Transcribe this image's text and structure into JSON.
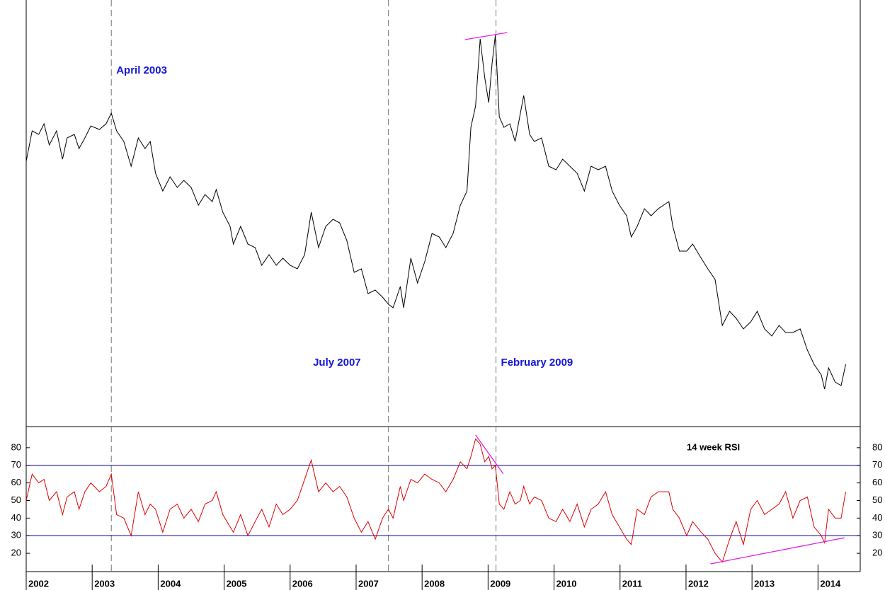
{
  "chart_data": [
    {
      "type": "line",
      "x": [
        2002.0,
        2002.09,
        2002.19,
        2002.27,
        2002.35,
        2002.46,
        2002.55,
        2002.62,
        2002.73,
        2002.8,
        2002.89,
        2002.98,
        2003.11,
        2003.21,
        2003.29,
        2003.37,
        2003.48,
        2003.59,
        2003.7,
        2003.8,
        2003.88,
        2003.96,
        2004.07,
        2004.18,
        2004.29,
        2004.39,
        2004.5,
        2004.61,
        2004.71,
        2004.82,
        2004.88,
        2004.98,
        2005.09,
        2005.14,
        2005.25,
        2005.36,
        2005.47,
        2005.57,
        2005.68,
        2005.79,
        2005.89,
        2006.0,
        2006.11,
        2006.22,
        2006.32,
        2006.43,
        2006.54,
        2006.65,
        2006.75,
        2006.86,
        2006.97,
        2007.08,
        2007.18,
        2007.29,
        2007.4,
        2007.49,
        2007.56,
        2007.67,
        2007.72,
        2007.83,
        2007.93,
        2008.04,
        2008.15,
        2008.26,
        2008.36,
        2008.47,
        2008.58,
        2008.68,
        2008.74,
        2008.81,
        2008.88,
        2008.95,
        2009.01,
        2009.06,
        2009.11,
        2009.17,
        2009.24,
        2009.33,
        2009.41,
        2009.49,
        2009.54,
        2009.63,
        2009.7,
        2009.81,
        2009.92,
        2010.03,
        2010.13,
        2010.24,
        2010.35,
        2010.46,
        2010.56,
        2010.67,
        2010.78,
        2010.88,
        2010.99,
        2011.1,
        2011.17,
        2011.26,
        2011.37,
        2011.47,
        2011.58,
        2011.74,
        2011.8,
        2011.9,
        2012.01,
        2012.1,
        2012.23,
        2012.33,
        2012.44,
        2012.55,
        2012.66,
        2012.76,
        2012.87,
        2012.98,
        2013.08,
        2013.19,
        2013.3,
        2013.41,
        2013.51,
        2013.62,
        2013.73,
        2013.84,
        2013.94,
        2014.05,
        2014.1,
        2014.16,
        2014.26,
        2014.35,
        2014.42
      ],
      "values": [
        375,
        418,
        413,
        428,
        398,
        418,
        378,
        408,
        413,
        393,
        408,
        425,
        420,
        428,
        443,
        418,
        403,
        368,
        408,
        393,
        403,
        358,
        333,
        353,
        338,
        348,
        338,
        313,
        328,
        318,
        335,
        303,
        283,
        258,
        283,
        258,
        253,
        228,
        243,
        228,
        238,
        228,
        223,
        243,
        303,
        253,
        283,
        293,
        288,
        263,
        218,
        223,
        188,
        193,
        183,
        173,
        168,
        198,
        168,
        238,
        203,
        233,
        273,
        268,
        253,
        273,
        313,
        333,
        423,
        453,
        548,
        493,
        458,
        513,
        553,
        438,
        423,
        428,
        403,
        443,
        468,
        413,
        403,
        408,
        368,
        363,
        378,
        368,
        358,
        333,
        368,
        363,
        368,
        333,
        313,
        298,
        268,
        283,
        308,
        298,
        308,
        318,
        283,
        248,
        248,
        258,
        238,
        223,
        208,
        143,
        163,
        153,
        138,
        148,
        163,
        138,
        128,
        143,
        133,
        133,
        138,
        108,
        88,
        73,
        53,
        83,
        63,
        58,
        88
      ],
      "color": "#000000",
      "xlim": [
        2002,
        2014.64
      ],
      "ylim": [
        0,
        603
      ],
      "vlines": [
        2003.29,
        2007.49,
        2009.12
      ],
      "annotations": [
        "April 2003",
        "July 2007",
        "February 2009"
      ],
      "trendlines": [
        {
          "x": [
            2008.65,
            2009.29
          ],
          "values": [
            547,
            557
          ],
          "color": "#e020e0"
        }
      ]
    },
    {
      "type": "line",
      "label": "14 week RSI",
      "x": [
        2002.0,
        2002.09,
        2002.19,
        2002.27,
        2002.35,
        2002.46,
        2002.55,
        2002.62,
        2002.73,
        2002.8,
        2002.89,
        2002.98,
        2003.11,
        2003.21,
        2003.29,
        2003.37,
        2003.48,
        2003.59,
        2003.7,
        2003.8,
        2003.88,
        2003.96,
        2004.07,
        2004.18,
        2004.29,
        2004.39,
        2004.5,
        2004.61,
        2004.71,
        2004.82,
        2004.88,
        2004.98,
        2005.09,
        2005.14,
        2005.25,
        2005.36,
        2005.47,
        2005.57,
        2005.68,
        2005.79,
        2005.89,
        2006.0,
        2006.11,
        2006.22,
        2006.32,
        2006.43,
        2006.54,
        2006.65,
        2006.75,
        2006.86,
        2006.97,
        2007.08,
        2007.18,
        2007.29,
        2007.4,
        2007.49,
        2007.56,
        2007.67,
        2007.72,
        2007.83,
        2007.93,
        2008.04,
        2008.15,
        2008.26,
        2008.36,
        2008.47,
        2008.58,
        2008.68,
        2008.74,
        2008.81,
        2008.88,
        2008.95,
        2009.01,
        2009.06,
        2009.11,
        2009.17,
        2009.24,
        2009.33,
        2009.41,
        2009.49,
        2009.54,
        2009.63,
        2009.7,
        2009.81,
        2009.92,
        2010.03,
        2010.13,
        2010.24,
        2010.35,
        2010.46,
        2010.56,
        2010.67,
        2010.78,
        2010.88,
        2010.99,
        2011.1,
        2011.17,
        2011.26,
        2011.37,
        2011.47,
        2011.58,
        2011.74,
        2011.8,
        2011.9,
        2012.01,
        2012.1,
        2012.23,
        2012.33,
        2012.44,
        2012.55,
        2012.66,
        2012.76,
        2012.87,
        2012.98,
        2013.08,
        2013.19,
        2013.3,
        2013.41,
        2013.51,
        2013.62,
        2013.73,
        2013.84,
        2013.94,
        2014.05,
        2014.1,
        2014.16,
        2014.26,
        2014.35,
        2014.42
      ],
      "values": [
        50,
        65,
        60,
        62,
        50,
        55,
        42,
        52,
        55,
        45,
        55,
        60,
        55,
        58,
        65,
        42,
        40,
        30,
        55,
        42,
        48,
        45,
        32,
        45,
        48,
        40,
        45,
        38,
        48,
        50,
        55,
        42,
        35,
        32,
        42,
        30,
        38,
        45,
        35,
        48,
        42,
        45,
        50,
        62,
        73,
        55,
        60,
        55,
        58,
        52,
        40,
        32,
        38,
        28,
        40,
        45,
        40,
        58,
        50,
        62,
        60,
        65,
        62,
        60,
        55,
        62,
        72,
        68,
        75,
        85,
        82,
        72,
        75,
        68,
        70,
        48,
        45,
        55,
        48,
        50,
        58,
        48,
        52,
        50,
        40,
        38,
        45,
        38,
        48,
        35,
        45,
        48,
        55,
        42,
        35,
        28,
        25,
        45,
        42,
        52,
        55,
        55,
        45,
        40,
        30,
        38,
        32,
        28,
        20,
        15,
        28,
        38,
        25,
        45,
        50,
        42,
        45,
        48,
        55,
        40,
        50,
        52,
        35,
        30,
        26,
        45,
        40,
        40,
        55
      ],
      "color": "#e00000",
      "xlim": [
        2002,
        2014.64
      ],
      "ylim": [
        9.6,
        92
      ],
      "xticks": [
        2002,
        2003,
        2004,
        2005,
        2006,
        2007,
        2008,
        2009,
        2010,
        2011,
        2012,
        2013,
        2014
      ],
      "yticks": [
        20,
        30,
        40,
        50,
        60,
        70,
        80
      ],
      "hlines": [
        70,
        30
      ],
      "hline_color": "#0000a0",
      "trendlines": [
        {
          "x": [
            2008.81,
            2009.23
          ],
          "values": [
            87.2,
            65.2
          ],
          "color": "#e020e0"
        },
        {
          "x": [
            2012.37,
            2014.4
          ],
          "values": [
            14,
            28.8
          ],
          "color": "#e020e0"
        }
      ]
    }
  ]
}
